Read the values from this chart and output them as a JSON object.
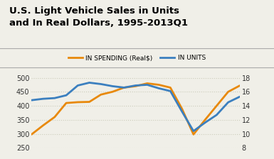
{
  "title": "U.S. Light Vehicle Sales in Units\nand In Real Dollars, 1995-2013Q1",
  "title_fontsize": 9.5,
  "title_fontweight": "bold",
  "legend_label_spending": "IN SPENDING (Real$)",
  "legend_label_units": "IN UNITS",
  "spending_color": "#E8890C",
  "units_color": "#3B7FBF",
  "background_color": "#F0EFE8",
  "plot_bg_color": "#F0EFE8",
  "x": [
    0,
    1,
    2,
    3,
    4,
    5,
    6,
    7,
    8,
    9,
    10,
    11,
    12,
    13,
    14,
    15,
    16,
    17,
    18
  ],
  "spending_data": [
    298,
    330,
    360,
    410,
    413,
    414,
    440,
    450,
    465,
    470,
    480,
    475,
    465,
    390,
    298,
    350,
    400,
    450,
    472
  ],
  "units_data": [
    14.8,
    15.0,
    15.1,
    15.5,
    16.9,
    17.3,
    17.1,
    16.8,
    16.6,
    16.9,
    17.0,
    16.5,
    16.1,
    13.2,
    10.4,
    11.6,
    12.7,
    14.5,
    15.3
  ],
  "left_ylim": [
    250,
    525
  ],
  "right_ylim": [
    8.0,
    19.0
  ],
  "left_yticks": [
    250,
    300,
    350,
    400,
    450,
    500
  ],
  "right_yticks": [
    8,
    10,
    12,
    14,
    16,
    18
  ],
  "grid_color": "#CCCCBB",
  "grid_linestyle": ":",
  "line_width": 2.0,
  "legend_fontsize": 6.5,
  "tick_fontsize": 7.0,
  "separator_color": "#AAAAAA",
  "separator_linewidth": 0.8
}
